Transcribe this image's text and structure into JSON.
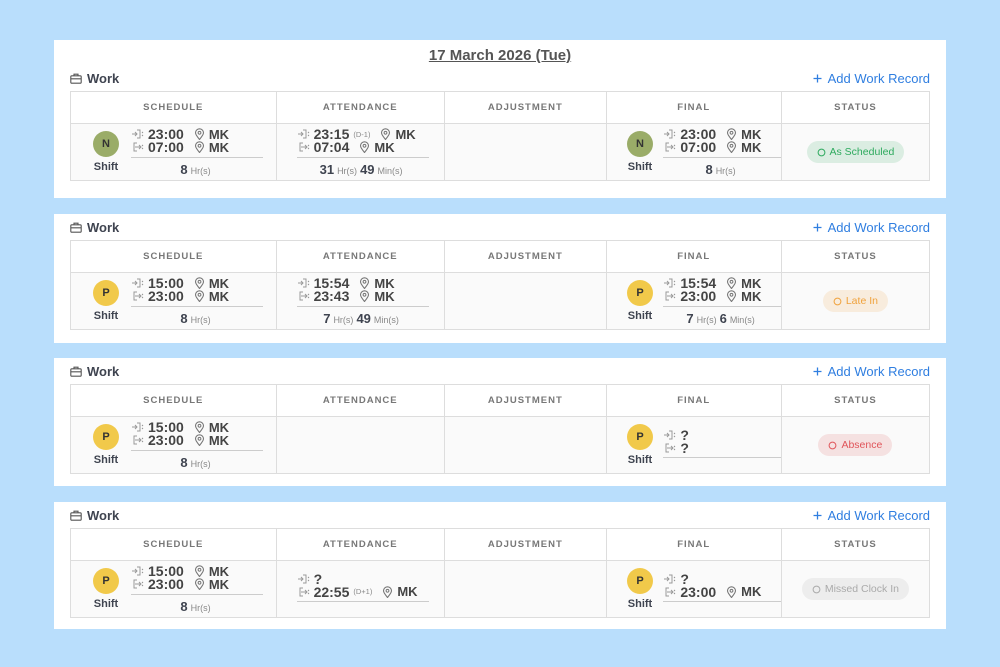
{
  "date": "17 March 2026 (Tue)",
  "panels": [
    {
      "section": "Work",
      "action": "Add Work Record",
      "headers": [
        "SCHEDULE",
        "ATTENDANCE",
        "ADJUSTMENT",
        "FINAL",
        "STATUS"
      ],
      "schedule": {
        "badge": "N",
        "badge_color": "#9aac68",
        "label": "Shift",
        "in": "23:00",
        "in_loc": "MK",
        "out": "07:00",
        "out_loc": "MK",
        "duration": [
          {
            "value": 8,
            "unit": "Hr(s)"
          }
        ]
      },
      "attendance": {
        "in": "23:15",
        "in_tag": "(D-1)",
        "in_loc": "MK",
        "out": "07:04",
        "out_loc": "MK",
        "duration": [
          {
            "value": 31,
            "unit": "Hr(s)"
          },
          {
            "value": 49,
            "unit": "Min(s)"
          }
        ]
      },
      "final": {
        "badge": "N",
        "badge_color": "#9aac68",
        "label": "Shift",
        "in": "23:00",
        "in_loc": "MK",
        "out": "07:00",
        "out_loc": "MK",
        "duration": [
          {
            "value": 8,
            "unit": "Hr(s)"
          }
        ]
      },
      "status": "As Scheduled",
      "status_color": "#2eaa5e"
    },
    {
      "section": "Work",
      "action": "Add Work Record",
      "headers": [
        "SCHEDULE",
        "ATTENDANCE",
        "ADJUSTMENT",
        "FINAL",
        "STATUS"
      ],
      "schedule": {
        "badge": "P",
        "badge_color": "#f1c94a",
        "label": "Shift",
        "in": "15:00",
        "in_loc": "MK",
        "out": "23:00",
        "out_loc": "MK",
        "duration": [
          {
            "value": 8,
            "unit": "Hr(s)"
          }
        ]
      },
      "attendance": {
        "in": "15:54",
        "in_loc": "MK",
        "out": "23:43",
        "out_loc": "MK",
        "duration": [
          {
            "value": 7,
            "unit": "Hr(s)"
          },
          {
            "value": 49,
            "unit": "Min(s)"
          }
        ]
      },
      "final": {
        "badge": "P",
        "badge_color": "#f1c94a",
        "label": "Shift",
        "in": "15:54",
        "in_loc": "MK",
        "out": "23:00",
        "out_loc": "MK",
        "duration": [
          {
            "value": 7,
            "unit": "Hr(s)"
          },
          {
            "value": 6,
            "unit": "Min(s)"
          }
        ]
      },
      "status": "Late In",
      "status_color": "#f0a23c"
    },
    {
      "section": "Work",
      "action": "Add Work Record",
      "headers": [
        "SCHEDULE",
        "ATTENDANCE",
        "ADJUSTMENT",
        "FINAL",
        "STATUS"
      ],
      "schedule": {
        "badge": "P",
        "badge_color": "#f1c94a",
        "label": "Shift",
        "in": "15:00",
        "in_loc": "MK",
        "out": "23:00",
        "out_loc": "MK",
        "duration": [
          {
            "value": 8,
            "unit": "Hr(s)"
          }
        ]
      },
      "final": {
        "badge": "P",
        "badge_color": "#f1c94a",
        "label": "Shift",
        "in": "?",
        "out": "?"
      },
      "status": "Absence",
      "status_color": "#e0555a"
    },
    {
      "section": "Work",
      "action": "Add Work Record",
      "headers": [
        "SCHEDULE",
        "ATTENDANCE",
        "ADJUSTMENT",
        "FINAL",
        "STATUS"
      ],
      "schedule": {
        "badge": "P",
        "badge_color": "#f1c94a",
        "label": "Shift",
        "in": "15:00",
        "in_loc": "MK",
        "out": "23:00",
        "out_loc": "MK",
        "duration": [
          {
            "value": 8,
            "unit": "Hr(s)"
          }
        ]
      },
      "attendance": {
        "in": "?",
        "out": "22:55",
        "out_tag": "(D+1)",
        "out_loc": "MK"
      },
      "final": {
        "badge": "P",
        "badge_color": "#f1c94a",
        "label": "Shift",
        "in": "?",
        "out": "23:00",
        "out_loc": "MK"
      },
      "status": "Missed Clock In",
      "status_color": "#aaaaaa"
    }
  ]
}
